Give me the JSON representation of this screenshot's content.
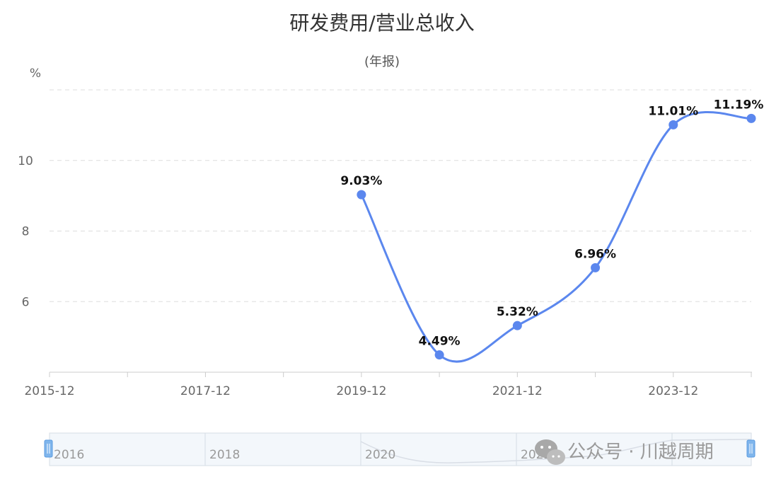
{
  "chart_data": {
    "type": "line",
    "title": "研发费用/营业总收入",
    "subtitle": "(年报)",
    "y_unit": "%",
    "x": [
      "2015-12",
      "2016-12",
      "2017-12",
      "2018-12",
      "2019-12",
      "2020-12",
      "2021-12",
      "2022-12",
      "2023-12",
      "2024-12"
    ],
    "x_tick_labels": [
      "2015-12",
      "2017-12",
      "2019-12",
      "2021-12",
      "2023-12"
    ],
    "y_ticks": [
      6,
      8,
      10
    ],
    "ylim": [
      4.0,
      12.0
    ],
    "series": [
      {
        "values": [
          null,
          null,
          null,
          null,
          9.03,
          4.49,
          5.32,
          6.96,
          11.01,
          11.19
        ],
        "labels": [
          null,
          null,
          null,
          null,
          "9.03%",
          "4.49%",
          "5.32%",
          "6.96%",
          "11.01%",
          "11.19%"
        ]
      }
    ],
    "grid": true,
    "line_color": "#5b87ee",
    "navigator_labels": [
      "2016",
      "2018",
      "2020",
      "2022"
    ]
  },
  "watermark": "公众号 · 川越周期"
}
